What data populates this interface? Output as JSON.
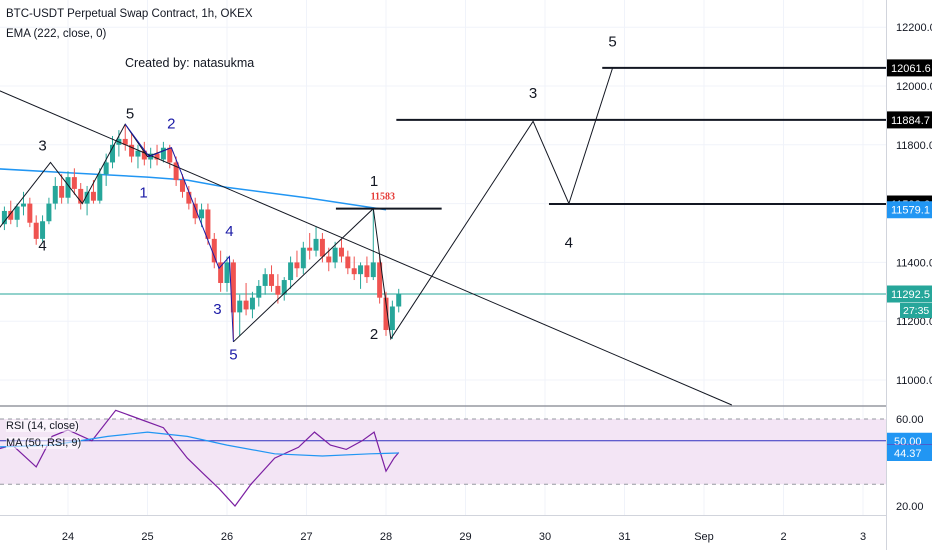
{
  "header": {
    "symbol_line": "BTC-USDT Perpetual Swap Contract, 1h, OKEX",
    "ema_line": "EMA (222, close, 0)",
    "created_by": "Created by: natasukma"
  },
  "colors": {
    "candle_up": "#26a69a",
    "candle_down": "#ef5350",
    "ema": "#2196f3",
    "wave_blue": "#1a1aa6",
    "rsi_line": "#7b1fa2",
    "rsi_ma": "#2196f3",
    "rsi_band": "#f3e5f5",
    "price_line": "#26a69a",
    "target_label": "#000000",
    "ema_label": "#2196f3",
    "red_text": "#e53935"
  },
  "chart_data": [
    {
      "type": "candlestick",
      "title": "BTC-USDT Perpetual Swap Contract, 1h, OKEX",
      "x_ticks": [
        "24",
        "25",
        "26",
        "27",
        "28",
        "29",
        "30",
        "31",
        "Sep",
        "2",
        "3"
      ],
      "y_ticks": [
        "11000.0",
        "11200.0",
        "11400.0",
        "11600.0",
        "11800.0",
        "12000.0",
        "12200.0"
      ],
      "ylim": [
        10900,
        12280
      ],
      "overlays": {
        "ema": "EMA (222, close, 0)"
      },
      "price_labels": [
        {
          "value": 12061.6,
          "text": "12061.6",
          "style": "dark"
        },
        {
          "value": 11884.7,
          "text": "11884.7",
          "style": "dark"
        },
        {
          "value": 11598.6,
          "text": "11598.6",
          "style": "dark"
        },
        {
          "value": 11579.1,
          "text": "11579.1",
          "style": "ema"
        },
        {
          "value": 11292.5,
          "text": "11292.5",
          "style": "price"
        }
      ],
      "countdown": "27:35",
      "annotations": {
        "red_price": "11583",
        "wave_labels_black": [
          {
            "text": "3",
            "date": 23.68,
            "price": 11780
          },
          {
            "text": "4",
            "date": 23.68,
            "price": 11440
          },
          {
            "text": "5",
            "date": 24.78,
            "price": 11890
          },
          {
            "text": "1",
            "date": 27.85,
            "price": 11660
          },
          {
            "text": "2",
            "date": 27.85,
            "price": 11140
          },
          {
            "text": "3",
            "date": 29.85,
            "price": 11960
          },
          {
            "text": "4",
            "date": 30.3,
            "price": 11450
          },
          {
            "text": "5",
            "date": 30.85,
            "price": 12135
          }
        ],
        "wave_labels_blue": [
          {
            "text": "2",
            "date": 25.3,
            "price": 11855
          },
          {
            "text": "1",
            "date": 24.95,
            "price": 11620
          },
          {
            "text": "4",
            "date": 26.03,
            "price": 11490
          },
          {
            "text": "3",
            "date": 25.88,
            "price": 11225
          },
          {
            "text": "5",
            "date": 26.08,
            "price": 11070
          }
        ]
      },
      "candles": [
        {
          "date": 23.2,
          "open": 11530,
          "high": 11590,
          "low": 11510,
          "close": 11575
        },
        {
          "date": 23.28,
          "open": 11575,
          "high": 11610,
          "low": 11530,
          "close": 11545
        },
        {
          "date": 23.36,
          "open": 11545,
          "high": 11600,
          "low": 11520,
          "close": 11590
        },
        {
          "date": 23.44,
          "open": 11590,
          "high": 11640,
          "low": 11560,
          "close": 11600
        },
        {
          "date": 23.52,
          "open": 11600,
          "high": 11620,
          "low": 11520,
          "close": 11535
        },
        {
          "date": 23.6,
          "open": 11535,
          "high": 11560,
          "low": 11460,
          "close": 11480
        },
        {
          "date": 23.68,
          "open": 11480,
          "high": 11560,
          "low": 11470,
          "close": 11540
        },
        {
          "date": 23.76,
          "open": 11540,
          "high": 11620,
          "low": 11530,
          "close": 11600
        },
        {
          "date": 23.84,
          "open": 11600,
          "high": 11690,
          "low": 11580,
          "close": 11660
        },
        {
          "date": 23.92,
          "open": 11660,
          "high": 11700,
          "low": 11600,
          "close": 11620
        },
        {
          "date": 24.0,
          "open": 11620,
          "high": 11710,
          "low": 11600,
          "close": 11690
        },
        {
          "date": 24.08,
          "open": 11690,
          "high": 11720,
          "low": 11630,
          "close": 11650
        },
        {
          "date": 24.16,
          "open": 11650,
          "high": 11670,
          "low": 11580,
          "close": 11600
        },
        {
          "date": 24.24,
          "open": 11600,
          "high": 11660,
          "low": 11560,
          "close": 11640
        },
        {
          "date": 24.32,
          "open": 11640,
          "high": 11680,
          "low": 11600,
          "close": 11610
        },
        {
          "date": 24.4,
          "open": 11610,
          "high": 11720,
          "low": 11600,
          "close": 11700
        },
        {
          "date": 24.48,
          "open": 11700,
          "high": 11770,
          "low": 11660,
          "close": 11740
        },
        {
          "date": 24.56,
          "open": 11740,
          "high": 11830,
          "low": 11720,
          "close": 11800
        },
        {
          "date": 24.64,
          "open": 11800,
          "high": 11850,
          "low": 11760,
          "close": 11820
        },
        {
          "date": 24.72,
          "open": 11820,
          "high": 11870,
          "low": 11780,
          "close": 11800
        },
        {
          "date": 24.8,
          "open": 11800,
          "high": 11840,
          "low": 11740,
          "close": 11760
        },
        {
          "date": 24.88,
          "open": 11760,
          "high": 11800,
          "low": 11720,
          "close": 11780
        },
        {
          "date": 24.96,
          "open": 11780,
          "high": 11810,
          "low": 11730,
          "close": 11750
        },
        {
          "date": 25.04,
          "open": 11750,
          "high": 11790,
          "low": 11720,
          "close": 11770
        },
        {
          "date": 25.12,
          "open": 11770,
          "high": 11800,
          "low": 11730,
          "close": 11750
        },
        {
          "date": 25.2,
          "open": 11750,
          "high": 11810,
          "low": 11740,
          "close": 11790
        },
        {
          "date": 25.28,
          "open": 11790,
          "high": 11800,
          "low": 11720,
          "close": 11740
        },
        {
          "date": 25.36,
          "open": 11740,
          "high": 11760,
          "low": 11660,
          "close": 11680
        },
        {
          "date": 25.44,
          "open": 11680,
          "high": 11700,
          "low": 11620,
          "close": 11640
        },
        {
          "date": 25.52,
          "open": 11640,
          "high": 11660,
          "low": 11580,
          "close": 11600
        },
        {
          "date": 25.6,
          "open": 11600,
          "high": 11620,
          "low": 11530,
          "close": 11550
        },
        {
          "date": 25.68,
          "open": 11550,
          "high": 11600,
          "low": 11520,
          "close": 11580
        },
        {
          "date": 25.76,
          "open": 11580,
          "high": 11600,
          "low": 11460,
          "close": 11480
        },
        {
          "date": 25.84,
          "open": 11480,
          "high": 11500,
          "low": 11380,
          "close": 11400
        },
        {
          "date": 25.92,
          "open": 11400,
          "high": 11440,
          "low": 11300,
          "close": 11330
        },
        {
          "date": 26.0,
          "open": 11330,
          "high": 11420,
          "low": 11300,
          "close": 11400
        },
        {
          "date": 26.08,
          "open": 11400,
          "high": 11410,
          "low": 11140,
          "close": 11230
        },
        {
          "date": 26.16,
          "open": 11230,
          "high": 11290,
          "low": 11150,
          "close": 11270
        },
        {
          "date": 26.24,
          "open": 11270,
          "high": 11330,
          "low": 11220,
          "close": 11240
        },
        {
          "date": 26.32,
          "open": 11240,
          "high": 11300,
          "low": 11210,
          "close": 11280
        },
        {
          "date": 26.4,
          "open": 11280,
          "high": 11340,
          "low": 11250,
          "close": 11320
        },
        {
          "date": 26.48,
          "open": 11320,
          "high": 11380,
          "low": 11290,
          "close": 11360
        },
        {
          "date": 26.56,
          "open": 11360,
          "high": 11390,
          "low": 11300,
          "close": 11320
        },
        {
          "date": 26.64,
          "open": 11320,
          "high": 11360,
          "low": 11260,
          "close": 11290
        },
        {
          "date": 26.72,
          "open": 11290,
          "high": 11350,
          "low": 11270,
          "close": 11340
        },
        {
          "date": 26.8,
          "open": 11340,
          "high": 11420,
          "low": 11310,
          "close": 11400
        },
        {
          "date": 26.88,
          "open": 11400,
          "high": 11440,
          "low": 11350,
          "close": 11380
        },
        {
          "date": 26.96,
          "open": 11380,
          "high": 11470,
          "low": 11360,
          "close": 11450
        },
        {
          "date": 27.04,
          "open": 11450,
          "high": 11500,
          "low": 11410,
          "close": 11440
        },
        {
          "date": 27.12,
          "open": 11440,
          "high": 11520,
          "low": 11420,
          "close": 11480
        },
        {
          "date": 27.2,
          "open": 11480,
          "high": 11500,
          "low": 11400,
          "close": 11420
        },
        {
          "date": 27.28,
          "open": 11420,
          "high": 11450,
          "low": 11370,
          "close": 11400
        },
        {
          "date": 27.36,
          "open": 11400,
          "high": 11470,
          "low": 11380,
          "close": 11450
        },
        {
          "date": 27.44,
          "open": 11450,
          "high": 11480,
          "low": 11400,
          "close": 11420
        },
        {
          "date": 27.52,
          "open": 11420,
          "high": 11440,
          "low": 11360,
          "close": 11380
        },
        {
          "date": 27.6,
          "open": 11380,
          "high": 11420,
          "low": 11340,
          "close": 11360
        },
        {
          "date": 27.68,
          "open": 11360,
          "high": 11400,
          "low": 11310,
          "close": 11390
        },
        {
          "date": 27.76,
          "open": 11390,
          "high": 11420,
          "low": 11330,
          "close": 11350
        },
        {
          "date": 27.84,
          "open": 11350,
          "high": 11583,
          "low": 11340,
          "close": 11400
        },
        {
          "date": 27.92,
          "open": 11400,
          "high": 11420,
          "low": 11260,
          "close": 11280
        },
        {
          "date": 28.0,
          "open": 11280,
          "high": 11300,
          "low": 11150,
          "close": 11170
        },
        {
          "date": 28.08,
          "open": 11170,
          "high": 11270,
          "low": 11140,
          "close": 11250
        },
        {
          "date": 28.16,
          "open": 11250,
          "high": 11310,
          "low": 11230,
          "close": 11292.5
        }
      ],
      "ema_points": [
        {
          "date": 23.0,
          "price": 11720
        },
        {
          "date": 24.0,
          "price": 11705
        },
        {
          "date": 25.0,
          "price": 11690
        },
        {
          "date": 25.5,
          "price": 11680
        },
        {
          "date": 26.0,
          "price": 11655
        },
        {
          "date": 27.0,
          "price": 11620
        },
        {
          "date": 28.0,
          "price": 11579.1
        }
      ]
    },
    {
      "type": "line",
      "title": "",
      "legend": [
        "RSI (14, close)",
        "MA (50, RSI, 9)"
      ],
      "y_ticks": [
        "60.00",
        "20.00"
      ],
      "ylim": [
        15,
        68
      ],
      "band": [
        30,
        60
      ],
      "price_labels": [
        {
          "value": 50.0,
          "text": "50.00",
          "style": "ma"
        },
        {
          "value": 44.58,
          "text": "44.58",
          "style": "rsi"
        },
        {
          "value": 44.37,
          "text": "44.37",
          "style": "ma"
        }
      ],
      "series": [
        {
          "name": "RSI (14, close)",
          "points": [
            {
              "date": 23.0,
              "value": 45
            },
            {
              "date": 23.3,
              "value": 48
            },
            {
              "date": 23.6,
              "value": 38
            },
            {
              "date": 23.8,
              "value": 52
            },
            {
              "date": 24.0,
              "value": 55
            },
            {
              "date": 24.3,
              "value": 50
            },
            {
              "date": 24.6,
              "value": 64
            },
            {
              "date": 24.9,
              "value": 60
            },
            {
              "date": 25.2,
              "value": 56
            },
            {
              "date": 25.5,
              "value": 42
            },
            {
              "date": 25.7,
              "value": 35
            },
            {
              "date": 25.9,
              "value": 28
            },
            {
              "date": 26.1,
              "value": 20
            },
            {
              "date": 26.3,
              "value": 30
            },
            {
              "date": 26.6,
              "value": 42
            },
            {
              "date": 26.9,
              "value": 47
            },
            {
              "date": 27.1,
              "value": 54
            },
            {
              "date": 27.3,
              "value": 48
            },
            {
              "date": 27.5,
              "value": 46
            },
            {
              "date": 27.7,
              "value": 50
            },
            {
              "date": 27.85,
              "value": 54
            },
            {
              "date": 28.0,
              "value": 36
            },
            {
              "date": 28.1,
              "value": 42
            },
            {
              "date": 28.16,
              "value": 44.58
            }
          ]
        },
        {
          "name": "MA (50, RSI, 9)",
          "points": [
            {
              "date": 23.0,
              "value": 47
            },
            {
              "date": 23.8,
              "value": 48
            },
            {
              "date": 24.5,
              "value": 52
            },
            {
              "date": 25.0,
              "value": 54
            },
            {
              "date": 25.5,
              "value": 52
            },
            {
              "date": 26.0,
              "value": 48
            },
            {
              "date": 26.6,
              "value": 44
            },
            {
              "date": 27.2,
              "value": 43
            },
            {
              "date": 27.8,
              "value": 44
            },
            {
              "date": 28.16,
              "value": 44.37
            }
          ]
        }
      ]
    }
  ]
}
